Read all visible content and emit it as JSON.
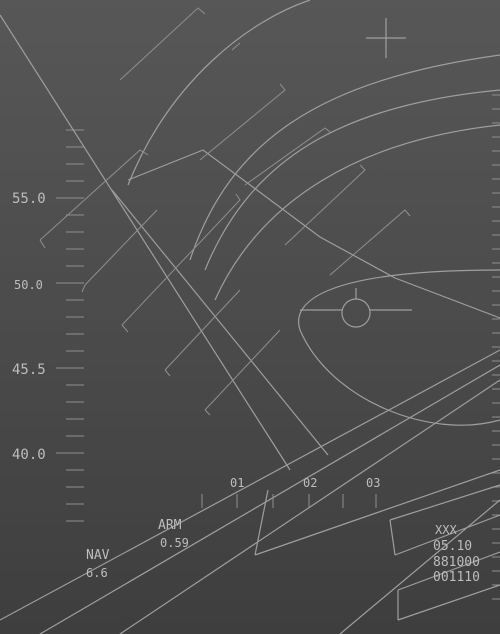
{
  "altitude_scale": {
    "labels": [
      "55.0",
      "50.0",
      "45.5",
      "40.0"
    ]
  },
  "bottom_scale": {
    "labels": [
      "01",
      "02",
      "03"
    ]
  },
  "readouts": {
    "arm_label": "ARM",
    "arm_value": "0.59",
    "nav_label": "NAV",
    "nav_value": "6.6"
  },
  "status_block": {
    "line1": "XXX",
    "line2": "05.10",
    "line3": "881000",
    "line4": "001110"
  },
  "colors": {
    "background_top": "#575757",
    "background_bottom": "#3e3e3e",
    "symbology": "#9e9e9e",
    "text": "#bdbdbd"
  }
}
